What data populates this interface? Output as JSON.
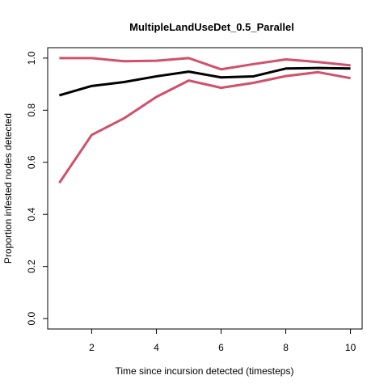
{
  "chart_data": {
    "type": "line",
    "title": "MultipleLandUseDet_0.5_Parallel",
    "xlabel": "Time since incursion detected (timesteps)",
    "ylabel": "Proportion infested nodes detected",
    "xlim": [
      0.64,
      10.36
    ],
    "ylim": [
      -0.04,
      1.04
    ],
    "xticks": [
      2,
      4,
      6,
      8,
      10
    ],
    "yticks": [
      0.0,
      0.2,
      0.4,
      0.6,
      0.8,
      1.0
    ],
    "xtick_labels": [
      "2",
      "4",
      "6",
      "8",
      "10"
    ],
    "ytick_labels": [
      "0.0",
      "0.2",
      "0.4",
      "0.6",
      "0.8",
      "1.0"
    ],
    "grid": false,
    "x": [
      1,
      2,
      3,
      4,
      5,
      6,
      7,
      8,
      9,
      10
    ],
    "series": [
      {
        "color": "#000000",
        "values": [
          0.857,
          0.893,
          0.908,
          0.93,
          0.948,
          0.926,
          0.93,
          0.96,
          0.962,
          0.96
        ]
      },
      {
        "color": "#d1506a",
        "values": [
          1.0,
          1.0,
          0.988,
          0.99,
          1.0,
          0.957,
          0.977,
          0.995,
          0.985,
          0.972
        ]
      },
      {
        "color": "#d1506a",
        "values": [
          0.521,
          0.705,
          0.769,
          0.851,
          0.914,
          0.886,
          0.905,
          0.931,
          0.946,
          0.923
        ]
      }
    ]
  }
}
